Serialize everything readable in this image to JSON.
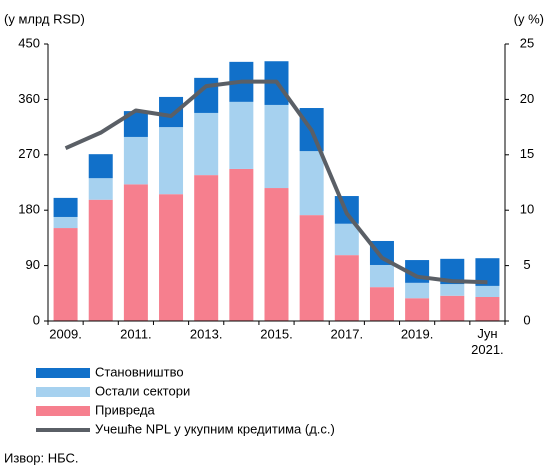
{
  "chart_data": {
    "type": "bar",
    "y_label": "(у млрд RSD)",
    "y2_label": "(у %)",
    "categories": [
      "2009.",
      null,
      "2011.",
      null,
      "2013.",
      null,
      "2015.",
      null,
      "2017.",
      null,
      "2019.",
      null,
      "Јун 2021."
    ],
    "series": [
      {
        "name": "Привреда",
        "color": "#f67f8e",
        "values": [
          151,
          197,
          222,
          206,
          237,
          247,
          216,
          172,
          107,
          55,
          37,
          41,
          39
        ]
      },
      {
        "name": "Остали сектори",
        "color": "#a6d1ef",
        "values": [
          18,
          35,
          77,
          109,
          101,
          109,
          135,
          104,
          51,
          36,
          25,
          19,
          18
        ]
      },
      {
        "name": "Становништво",
        "color": "#1170c9",
        "values": [
          31,
          39,
          42,
          49,
          57,
          65,
          71,
          70,
          45,
          39,
          37,
          41,
          45
        ]
      },
      {
        "name": "Учешће NPL у укупним кредитима (д.с.)",
        "color": "#5a5f66",
        "type": "line",
        "axis": "y2",
        "values": [
          15.6,
          17.0,
          19.0,
          18.5,
          21.2,
          21.6,
          21.6,
          17.2,
          9.7,
          5.7,
          4.0,
          3.6,
          3.5
        ]
      }
    ],
    "ylim": [
      0,
      450
    ],
    "yticks": [
      0,
      90,
      180,
      270,
      360,
      450
    ],
    "y2lim": [
      0,
      25
    ],
    "y2ticks": [
      0,
      5,
      10,
      15,
      20,
      25
    ],
    "source": "Извор: НБС."
  }
}
